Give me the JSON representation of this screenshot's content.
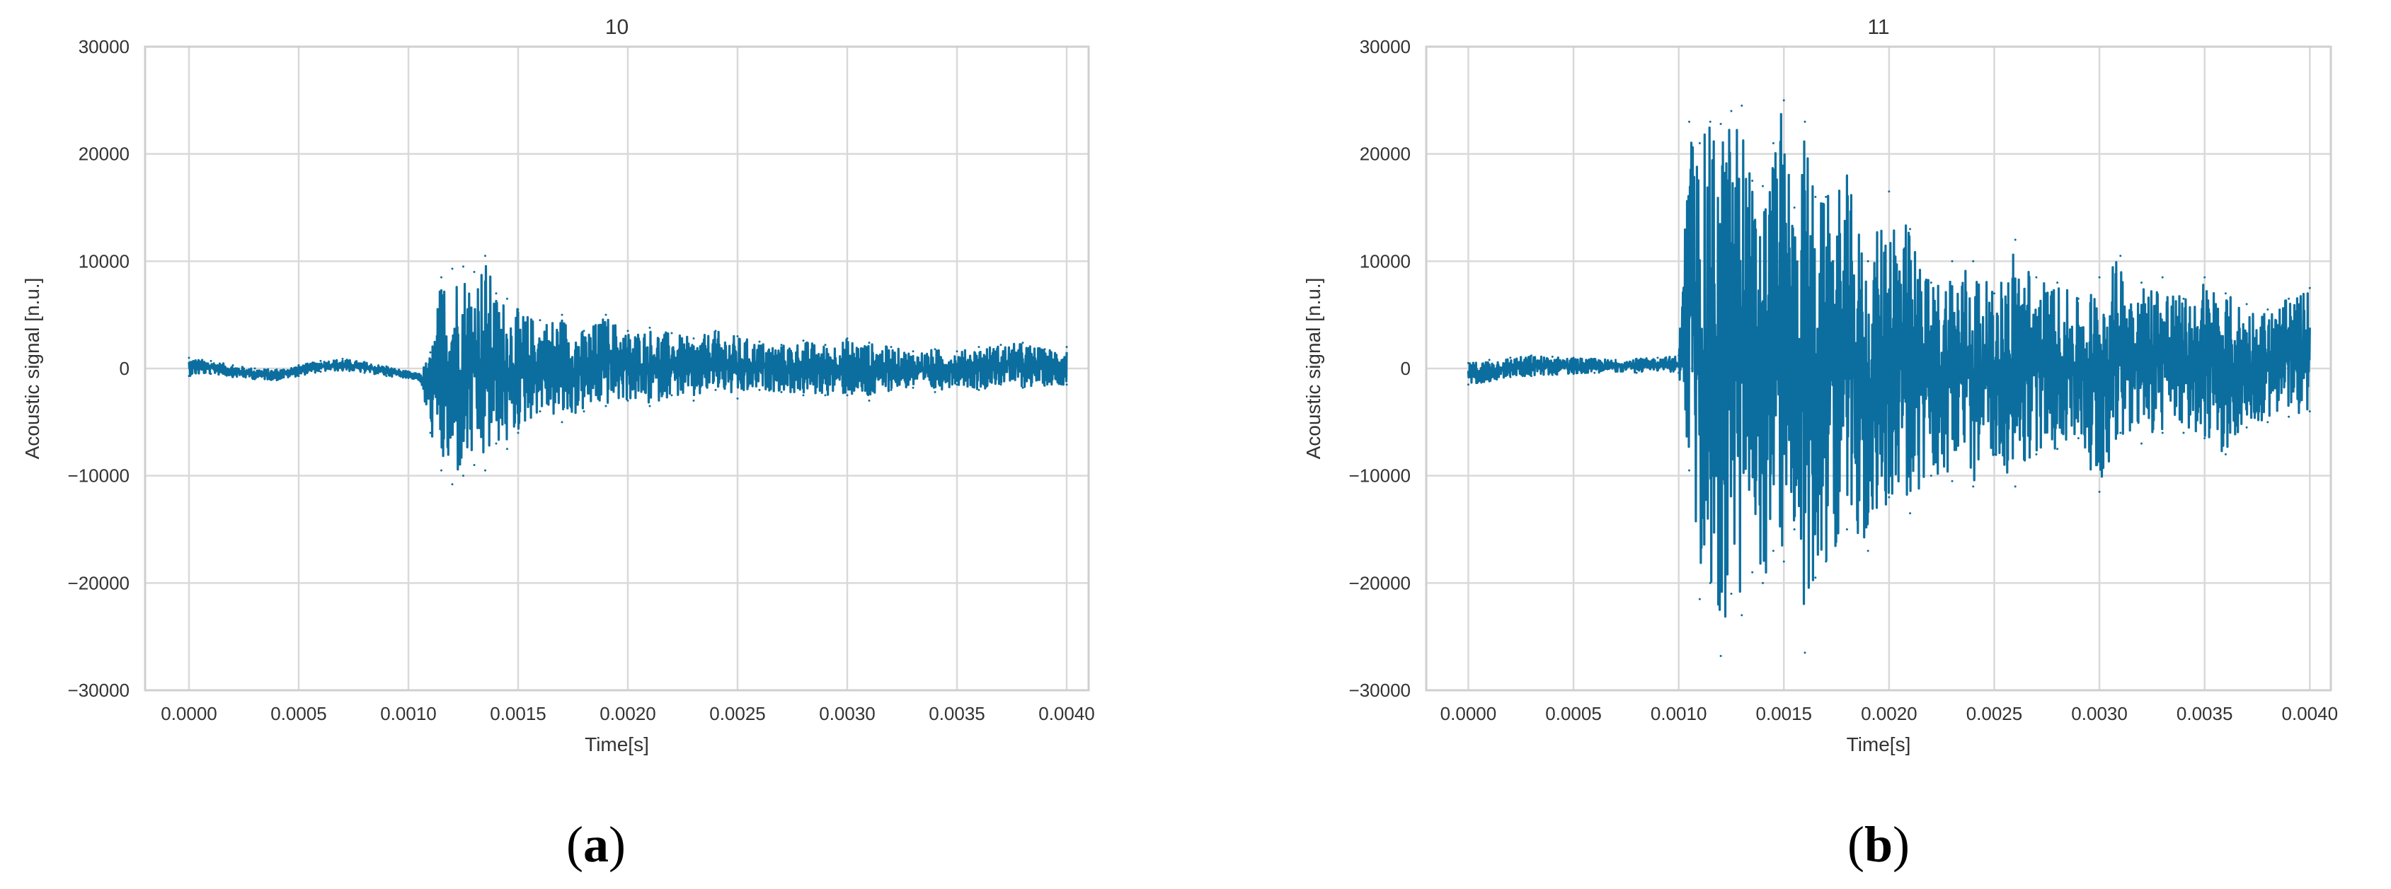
{
  "figure": {
    "panels": [
      {
        "open": "(",
        "letter": "a",
        "close": ")"
      },
      {
        "open": "(",
        "letter": "b",
        "close": ")"
      }
    ]
  },
  "chart_data": [
    {
      "type": "line",
      "title": "10",
      "xlabel": "Time[s]",
      "ylabel": "Acoustic signal [n.u.]",
      "xlim": [
        -0.0002,
        0.0041
      ],
      "ylim": [
        -30000,
        30000
      ],
      "xticks": [
        0.0,
        0.0005,
        0.001,
        0.0015,
        0.002,
        0.0025,
        0.003,
        0.0035,
        0.004
      ],
      "xtick_labels": [
        "0.0000",
        "0.0005",
        "0.0010",
        "0.0015",
        "0.0020",
        "0.0025",
        "0.0030",
        "0.0035",
        "0.0040"
      ],
      "yticks": [
        -30000,
        -20000,
        -10000,
        0,
        10000,
        20000,
        30000
      ],
      "ytick_labels": [
        "−30000",
        "−20000",
        "−10000",
        "0",
        "10000",
        "20000",
        "30000"
      ],
      "grid": true,
      "color": "#0c6e9e",
      "series": [
        {
          "x": [
            0.0,
            0.0001,
            0.0002,
            0.0003,
            0.0004,
            0.0005,
            0.0006,
            0.0007,
            0.0008,
            0.0009,
            0.001,
            0.00105,
            0.0011,
            0.00115,
            0.0012,
            0.00125,
            0.0013,
            0.00135,
            0.0014,
            0.00145,
            0.0015,
            0.0016,
            0.0017,
            0.0018,
            0.0019,
            0.002,
            0.0021,
            0.0022,
            0.0023,
            0.0024,
            0.0025,
            0.0026,
            0.0027,
            0.0028,
            0.0029,
            0.003,
            0.0031,
            0.0032,
            0.0033,
            0.0034,
            0.0035,
            0.0036,
            0.0037,
            0.0038,
            0.0039,
            0.004
          ],
          "upper": [
            1000,
            700,
            300,
            0,
            -100,
            300,
            700,
            900,
            600,
            200,
            -300,
            -500,
            1500,
            8500,
            9300,
            9500,
            9000,
            10500,
            7000,
            6500,
            5500,
            4500,
            5000,
            3500,
            5000,
            3500,
            3800,
            3300,
            2800,
            3500,
            3000,
            2500,
            2200,
            2600,
            2200,
            2800,
            2400,
            2000,
            1600,
            1800,
            1600,
            2000,
            2200,
            2400,
            1800,
            2000
          ],
          "lower": [
            -700,
            -500,
            -800,
            -1000,
            -1100,
            -700,
            -300,
            -200,
            -400,
            -700,
            -900,
            -1100,
            -6000,
            -9500,
            -10800,
            -10000,
            -9000,
            -9500,
            -7000,
            -7500,
            -6000,
            -4000,
            -5000,
            -4000,
            -3500,
            -3000,
            -3500,
            -2500,
            -3000,
            -2000,
            -2800,
            -2000,
            -2200,
            -2500,
            -2500,
            -2500,
            -3000,
            -2000,
            -1800,
            -2200,
            -1500,
            -2000,
            -1500,
            -1800,
            -1600,
            -1500
          ]
        }
      ]
    },
    {
      "type": "line",
      "title": "11",
      "xlabel": "Time[s]",
      "ylabel": "Acoustic signal [n.u.]",
      "xlim": [
        -0.0002,
        0.0041
      ],
      "ylim": [
        -30000,
        30000
      ],
      "xticks": [
        0.0,
        0.0005,
        0.001,
        0.0015,
        0.002,
        0.0025,
        0.003,
        0.0035,
        0.004
      ],
      "xtick_labels": [
        "0.0000",
        "0.0005",
        "0.0010",
        "0.0015",
        "0.0020",
        "0.0025",
        "0.0030",
        "0.0035",
        "0.0040"
      ],
      "yticks": [
        -30000,
        -20000,
        -10000,
        0,
        10000,
        20000,
        30000
      ],
      "ytick_labels": [
        "−30000",
        "−20000",
        "−10000",
        "0",
        "10000",
        "20000",
        "30000"
      ],
      "grid": true,
      "color": "#0c6e9e",
      "series": [
        {
          "x": [
            0.0,
            0.0001,
            0.0002,
            0.0003,
            0.0004,
            0.0005,
            0.0006,
            0.0007,
            0.0008,
            0.0009,
            0.001,
            0.00105,
            0.0011,
            0.00115,
            0.0012,
            0.00125,
            0.0013,
            0.00135,
            0.0014,
            0.00145,
            0.0015,
            0.00155,
            0.0016,
            0.00165,
            0.0017,
            0.0018,
            0.0019,
            0.002,
            0.0021,
            0.0022,
            0.0023,
            0.0024,
            0.0025,
            0.0026,
            0.0027,
            0.0028,
            0.0029,
            0.003,
            0.0031,
            0.0032,
            0.0033,
            0.0034,
            0.0035,
            0.0036,
            0.0037,
            0.0038,
            0.0039,
            0.004
          ],
          "upper": [
            500,
            800,
            1000,
            1200,
            1100,
            1000,
            900,
            800,
            900,
            1000,
            1200,
            23000,
            21000,
            23000,
            22800,
            24000,
            24500,
            17500,
            17000,
            21000,
            25000,
            15000,
            23000,
            16000,
            16000,
            18000,
            10000,
            16500,
            13000,
            8000,
            10000,
            10000,
            7000,
            12000,
            8500,
            8000,
            6500,
            8500,
            10500,
            8000,
            8500,
            6500,
            8500,
            7000,
            6000,
            5500,
            6500,
            7500
          ],
          "lower": [
            -1500,
            -1200,
            -800,
            -700,
            -600,
            -500,
            -400,
            -300,
            -400,
            -200,
            -400,
            -9500,
            -21500,
            -20000,
            -26800,
            -21000,
            -23000,
            -19000,
            -20000,
            -17000,
            -18000,
            -15000,
            -26500,
            -19500,
            -18000,
            -15000,
            -17000,
            -12000,
            -13500,
            -10000,
            -10500,
            -11000,
            -8000,
            -11000,
            -8000,
            -7500,
            -6500,
            -11500,
            -6000,
            -7000,
            -6000,
            -6000,
            -6500,
            -8000,
            -5500,
            -5000,
            -4500,
            -4000
          ]
        }
      ]
    }
  ]
}
